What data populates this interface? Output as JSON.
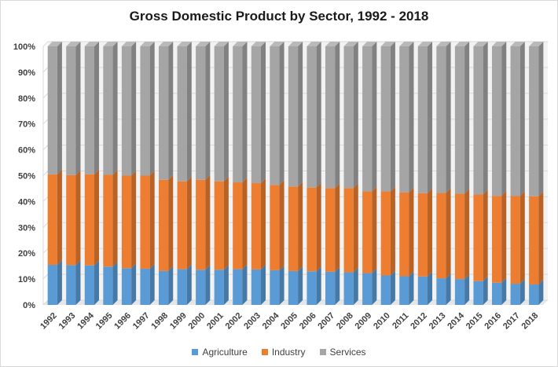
{
  "chart_data": {
    "type": "bar",
    "stacked": true,
    "percent_stacked": true,
    "style": "3d-column",
    "title": "Gross Domestic Product by Sector, 1992 - 2018",
    "categories": [
      "1992",
      "1993",
      "1994",
      "1995",
      "1996",
      "1997",
      "1998",
      "1999",
      "2000",
      "2001",
      "2002",
      "2003",
      "2004",
      "2005",
      "2006",
      "2007",
      "2008",
      "2009",
      "2010",
      "2011",
      "2012",
      "2013",
      "2014",
      "2015",
      "2016",
      "2017",
      "2018"
    ],
    "series": [
      {
        "name": "Agriculture",
        "color": "#5b9bd5",
        "values": [
          15.5,
          15.4,
          15.3,
          14.8,
          14.2,
          14.0,
          13.1,
          13.8,
          13.6,
          13.6,
          13.8,
          13.7,
          13.4,
          13.1,
          13.0,
          12.8,
          12.6,
          12.3,
          11.4,
          11.1,
          11.0,
          10.3,
          10.0,
          9.2,
          8.6,
          8.2,
          7.9
        ]
      },
      {
        "name": "Industry",
        "color": "#ed7d31",
        "values": [
          35.0,
          34.8,
          35.2,
          35.5,
          35.8,
          36.0,
          35.3,
          34.0,
          34.8,
          34.2,
          33.6,
          33.4,
          33.0,
          32.7,
          32.4,
          32.4,
          32.6,
          31.6,
          32.5,
          32.4,
          32.2,
          33.0,
          33.0,
          33.5,
          33.6,
          33.9,
          34.1
        ]
      },
      {
        "name": "Services",
        "color": "#a5a5a5",
        "values": [
          49.5,
          49.8,
          49.5,
          49.7,
          50.0,
          50.0,
          51.6,
          52.2,
          51.6,
          52.2,
          52.6,
          52.9,
          53.6,
          54.2,
          54.6,
          54.8,
          54.8,
          56.1,
          56.1,
          56.5,
          56.8,
          56.7,
          57.0,
          57.3,
          57.8,
          57.9,
          58.0
        ]
      }
    ],
    "y_ticks": [
      "0%",
      "10%",
      "20%",
      "30%",
      "40%",
      "50%",
      "60%",
      "70%",
      "80%",
      "90%",
      "100%"
    ],
    "ylim": [
      0,
      100
    ],
    "grid": true,
    "legend_position": "bottom",
    "wall_color": "#f2f2f2",
    "grid_color": "#d9d9d9"
  }
}
